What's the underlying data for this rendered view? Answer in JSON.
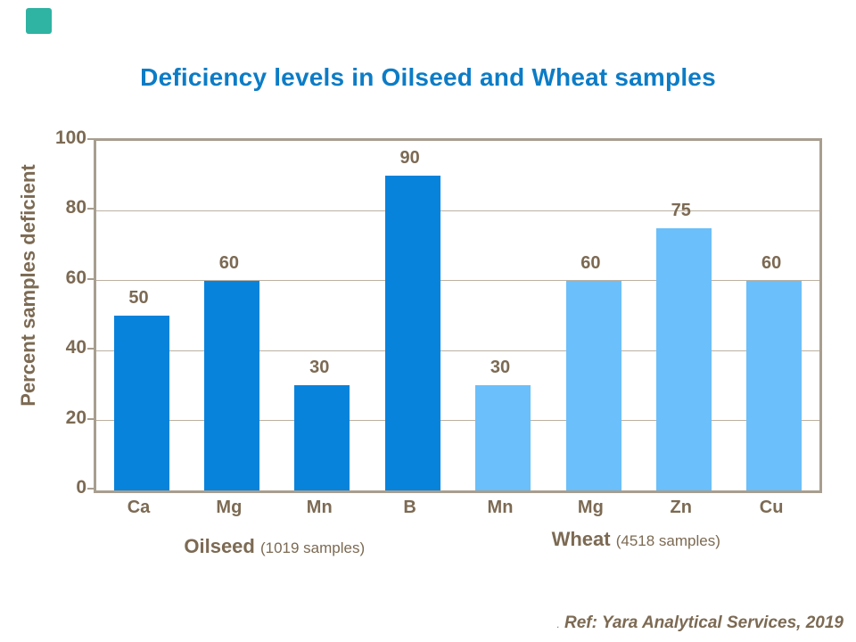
{
  "slide": {
    "title": "Deficiency levels in Oilseed and Wheat samples",
    "accent_square_color": "#2FB3A3",
    "title_color": "#0C7CC6",
    "ref_prefix": ".",
    "ref_text": "Ref: Yara Analytical Services, 2019"
  },
  "chart_data": {
    "type": "bar",
    "title": "Deficiency levels in Oilseed and Wheat samples",
    "xlabel": "",
    "ylabel": "Percent samples deficient",
    "ylim": [
      0,
      100
    ],
    "yticks": [
      0,
      20,
      40,
      60,
      80,
      100
    ],
    "grid": true,
    "legend_position": "none",
    "categories": [
      "Ca",
      "Mg",
      "Mn",
      "B",
      "Mn",
      "Mg",
      "Zn",
      "Cu"
    ],
    "values": [
      50,
      60,
      30,
      90,
      30,
      60,
      75,
      60
    ],
    "series": [
      {
        "name": "Oilseed",
        "subtitle": "(1019 samples)",
        "color": "#0883DC",
        "categories": [
          "Ca",
          "Mg",
          "Mn",
          "B"
        ],
        "values": [
          50,
          60,
          30,
          90
        ]
      },
      {
        "name": "Wheat",
        "subtitle": "(4518 samples)",
        "color": "#6BBFFA",
        "categories": [
          "Mn",
          "Mg",
          "Zn",
          "Cu"
        ],
        "values": [
          30,
          60,
          75,
          60
        ]
      }
    ],
    "colors": {
      "text": "#7C6A53",
      "plot_border": "#A89E8F",
      "gridline": "#BCB1A1"
    }
  }
}
